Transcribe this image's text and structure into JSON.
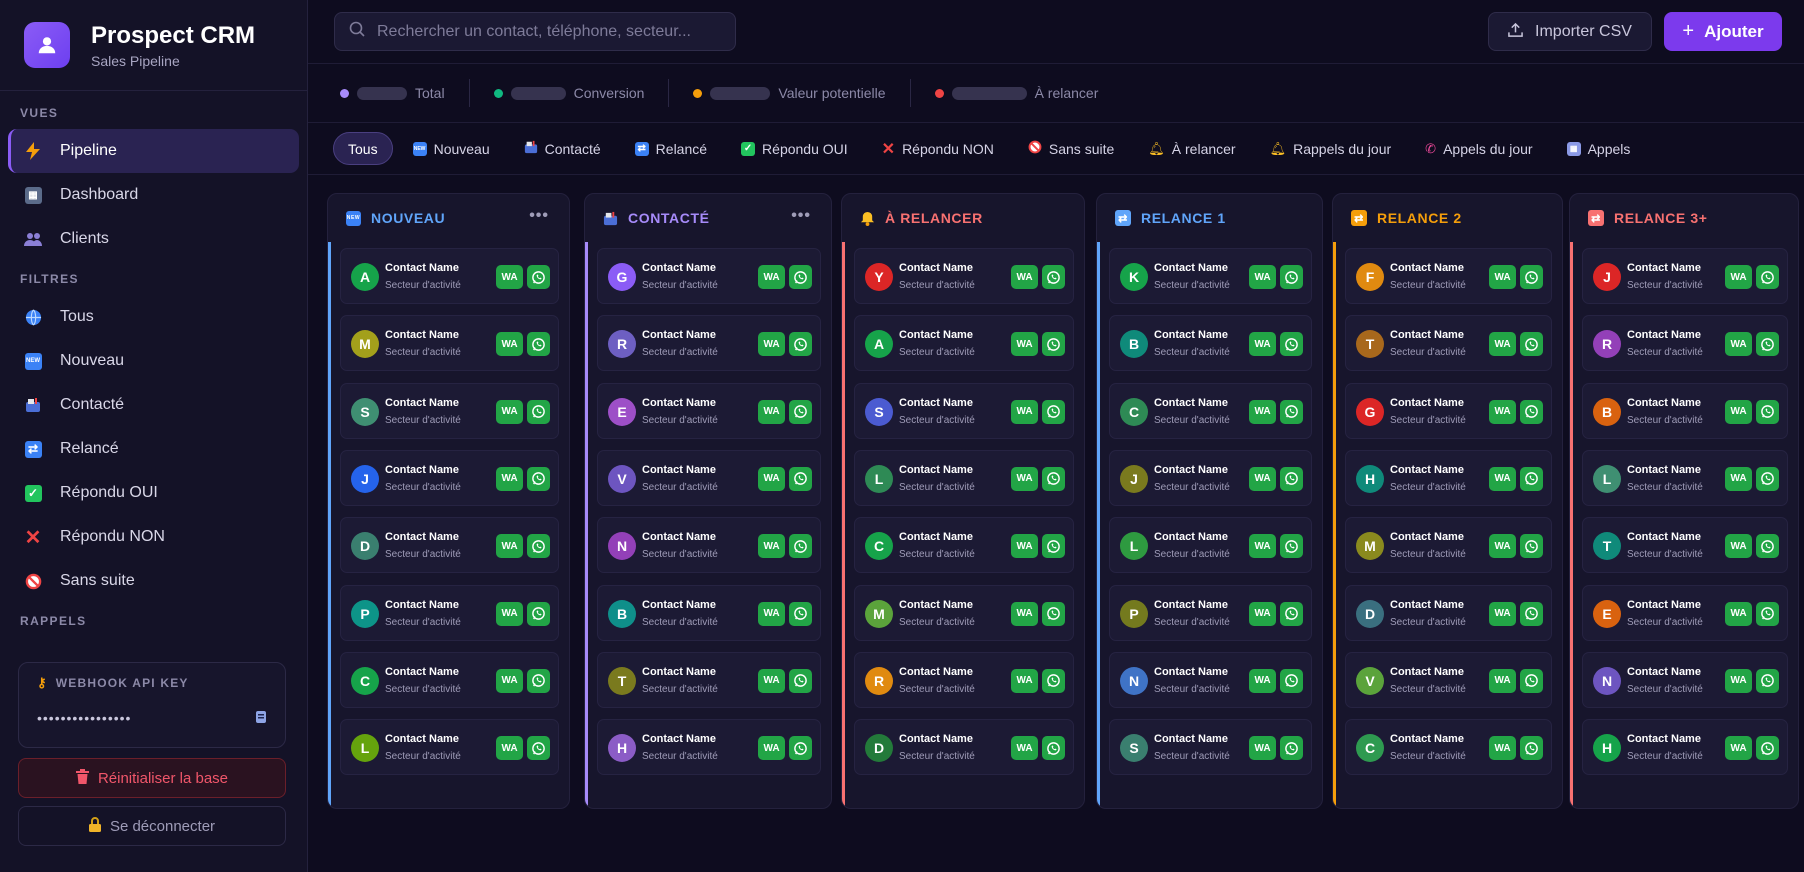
{
  "brand": {
    "title": "Prospect CRM",
    "subtitle": "Sales Pipeline"
  },
  "sidebar": {
    "sections": {
      "views": "VUES",
      "filters": "FILTRES",
      "reminders": "RAPPELS"
    },
    "views": [
      {
        "label": "Pipeline",
        "icon": "lightning-icon",
        "active": true
      },
      {
        "label": "Dashboard",
        "icon": "dashboard-icon"
      },
      {
        "label": "Clients",
        "icon": "users-icon"
      }
    ],
    "filters": [
      {
        "label": "Tous",
        "icon": "globe-icon"
      },
      {
        "label": "Nouveau",
        "icon": "new-icon"
      },
      {
        "label": "Contacté",
        "icon": "mailbox-icon"
      },
      {
        "label": "Relancé",
        "icon": "repeat-icon"
      },
      {
        "label": "Répondu OUI",
        "icon": "check-icon"
      },
      {
        "label": "Répondu NON",
        "icon": "cross-icon"
      },
      {
        "label": "Sans suite",
        "icon": "prohibited-icon"
      }
    ],
    "webhook": {
      "title": "WEBHOOK API KEY",
      "value": "••••••••••••••••"
    },
    "reset_label": "Réinitialiser la base",
    "logout_label": "Se déconnecter"
  },
  "topbar": {
    "search_placeholder": "Rechercher un contact, téléphone, secteur...",
    "import_label": "Importer CSV",
    "add_label": "Ajouter"
  },
  "stats": [
    {
      "label": "Total",
      "color": "#a78bfa"
    },
    {
      "label": "Conversion",
      "color": "#10b981"
    },
    {
      "label": "Valeur potentielle",
      "color": "#f59e0b"
    },
    {
      "label": "À relancer",
      "color": "#ef4444"
    }
  ],
  "filter_chips": [
    {
      "label": "Tous",
      "icon": "",
      "active": true
    },
    {
      "label": "Nouveau",
      "icon": "new-icon"
    },
    {
      "label": "Contacté",
      "icon": "mailbox-icon"
    },
    {
      "label": "Relancé",
      "icon": "repeat-icon"
    },
    {
      "label": "Répondu OUI",
      "icon": "check-icon"
    },
    {
      "label": "Répondu NON",
      "icon": "cross-icon"
    },
    {
      "label": "Sans suite",
      "icon": "prohibited-icon"
    },
    {
      "label": "À relancer",
      "icon": "bell-icon"
    },
    {
      "label": "Rappels du jour",
      "icon": "bell-icon"
    },
    {
      "label": "Appels du jour",
      "icon": "phone-icon"
    },
    {
      "label": "Appels",
      "icon": "calendar-icon"
    }
  ],
  "card_template": {
    "name": "Contact Name",
    "sector": "Secteur d'activité",
    "wa_label": "WA"
  },
  "columns": [
    {
      "title": "NOUVEAU",
      "icon": "new-icon",
      "color": "#60a5fa",
      "has_menu": true,
      "cards": [
        {
          "initial": "A",
          "color": "#16a34a"
        },
        {
          "initial": "M",
          "color": "#a3a01b"
        },
        {
          "initial": "S",
          "color": "#3f8f72"
        },
        {
          "initial": "J",
          "color": "#2563eb"
        },
        {
          "initial": "D",
          "color": "#3a7f6f"
        },
        {
          "initial": "P",
          "color": "#0d9488"
        },
        {
          "initial": "C",
          "color": "#16a34a"
        },
        {
          "initial": "L",
          "color": "#65a30d"
        }
      ]
    },
    {
      "title": "CONTACTÉ",
      "icon": "mailbox-icon",
      "color": "#a78bfa",
      "has_menu": true,
      "cards": [
        {
          "initial": "G",
          "color": "#8b5cf6"
        },
        {
          "initial": "R",
          "color": "#6d5fc2"
        },
        {
          "initial": "E",
          "color": "#9d4fc7"
        },
        {
          "initial": "V",
          "color": "#6d55c0"
        },
        {
          "initial": "N",
          "color": "#9340b8"
        },
        {
          "initial": "B",
          "color": "#0f8f8a"
        },
        {
          "initial": "T",
          "color": "#7a7a1e"
        },
        {
          "initial": "H",
          "color": "#8b5cc6"
        }
      ]
    },
    {
      "title": "À RELANCER",
      "icon": "bell-icon",
      "color": "#f87171",
      "has_menu": false,
      "cards": [
        {
          "initial": "Y",
          "color": "#dc2626"
        },
        {
          "initial": "A",
          "color": "#16a34a"
        },
        {
          "initial": "S",
          "color": "#4b5bd1"
        },
        {
          "initial": "L",
          "color": "#2e8a55"
        },
        {
          "initial": "C",
          "color": "#16a34a"
        },
        {
          "initial": "M",
          "color": "#5ba33b"
        },
        {
          "initial": "R",
          "color": "#e08a10"
        },
        {
          "initial": "D",
          "color": "#237a3a"
        }
      ]
    },
    {
      "title": "RELANCE 1",
      "icon": "repeat-icon",
      "color": "#60a5fa",
      "has_menu": false,
      "cards": [
        {
          "initial": "K",
          "color": "#16a34a"
        },
        {
          "initial": "B",
          "color": "#0f8a7a"
        },
        {
          "initial": "C",
          "color": "#2e8a55"
        },
        {
          "initial": "J",
          "color": "#7a7a1e"
        },
        {
          "initial": "L",
          "color": "#2e9a40"
        },
        {
          "initial": "P",
          "color": "#747a1e"
        },
        {
          "initial": "N",
          "color": "#3f73c6"
        },
        {
          "initial": "S",
          "color": "#3a7f6f"
        }
      ]
    },
    {
      "title": "RELANCE 2",
      "icon": "repeat-icon",
      "color": "#f59e0b",
      "has_menu": false,
      "cards": [
        {
          "initial": "F",
          "color": "#e08a10"
        },
        {
          "initial": "T",
          "color": "#a8681c"
        },
        {
          "initial": "G",
          "color": "#dc2626"
        },
        {
          "initial": "H",
          "color": "#0f8a7a"
        },
        {
          "initial": "M",
          "color": "#8a8a1e"
        },
        {
          "initial": "D",
          "color": "#3a6f7f"
        },
        {
          "initial": "V",
          "color": "#5ba33b"
        },
        {
          "initial": "C",
          "color": "#2e9a50"
        }
      ]
    },
    {
      "title": "RELANCE 3+",
      "icon": "repeat-icon",
      "color": "#f87171",
      "has_menu": false,
      "cards": [
        {
          "initial": "J",
          "color": "#dc2626"
        },
        {
          "initial": "R",
          "color": "#9340b8"
        },
        {
          "initial": "B",
          "color": "#d9620f"
        },
        {
          "initial": "L",
          "color": "#3f8f72"
        },
        {
          "initial": "T",
          "color": "#0f8a7a"
        },
        {
          "initial": "E",
          "color": "#d9620f"
        },
        {
          "initial": "N",
          "color": "#6d55c0"
        },
        {
          "initial": "H",
          "color": "#16a34a"
        }
      ]
    }
  ]
}
